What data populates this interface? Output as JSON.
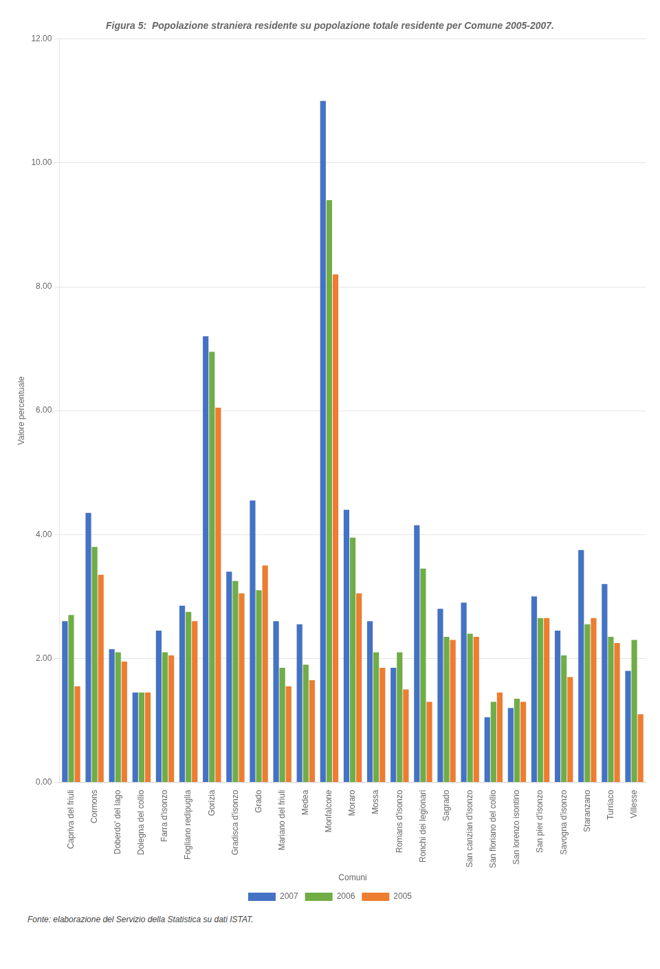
{
  "chart_data": {
    "type": "bar",
    "title": "Figura 5:  Popolazione straniera residente su popolazione totale residente per Comune 2005-2007.",
    "x_label": "Comuni",
    "y_label": "Valore percentuale",
    "categories": [
      "Capriva del friuli",
      "Cormons",
      "Doberdo' del lago",
      "Dolegna del collio",
      "Farra d'isonzo",
      "Fogliano redipuglia",
      "Gorizia",
      "Gradisca d'isonzo",
      "Grado",
      "Mariano del friuli",
      "Medea",
      "Monfalcone",
      "Moraro",
      "Mossa",
      "Romans d'isonzo",
      "Ronchi dei legionari",
      "Sagrado",
      "San canzian d'isonzo",
      "San floriano del collio",
      "San lorenzo isontino",
      "San pier d'isonzo",
      "Savogna d'isonzo",
      "Staranzano",
      "Turriaco",
      "Villesse"
    ],
    "series": [
      {
        "name": "2007",
        "color": "#4472C4",
        "values": [
          2.6,
          4.35,
          2.15,
          1.45,
          2.45,
          2.85,
          7.2,
          3.4,
          4.55,
          2.6,
          2.55,
          11.0,
          4.4,
          2.6,
          1.85,
          4.15,
          2.8,
          2.9,
          1.05,
          1.2,
          3.0,
          2.45,
          3.75,
          3.2,
          1.8
        ]
      },
      {
        "name": "2006",
        "color": "#70AD47",
        "values": [
          2.7,
          3.8,
          2.1,
          1.45,
          2.1,
          2.75,
          6.95,
          3.25,
          3.1,
          1.85,
          1.9,
          9.4,
          3.95,
          2.1,
          2.1,
          3.45,
          2.35,
          2.4,
          1.3,
          1.35,
          2.65,
          2.05,
          2.55,
          2.35,
          2.3
        ]
      },
      {
        "name": "2005",
        "color": "#ED7D31",
        "values": [
          1.55,
          3.35,
          1.95,
          1.45,
          2.05,
          2.6,
          6.05,
          3.05,
          3.5,
          1.55,
          1.65,
          8.2,
          3.05,
          1.85,
          1.5,
          1.3,
          2.3,
          2.35,
          1.45,
          1.3,
          2.65,
          1.7,
          2.65,
          2.25,
          1.1
        ]
      }
    ],
    "ylim": [
      0,
      12
    ],
    "yticks": [
      {
        "value": 0,
        "label": "0.00"
      },
      {
        "value": 2,
        "label": "2.00"
      },
      {
        "value": 4,
        "label": "4.00"
      },
      {
        "value": 6,
        "label": "6.00"
      },
      {
        "value": 8,
        "label": "8.00"
      },
      {
        "value": 10,
        "label": "10.00"
      },
      {
        "value": 12,
        "label": "12.00"
      }
    ],
    "grid": true,
    "legend": "bottom",
    "annotations": [
      "Fonte: elaborazione del Servizio della Statistica su dati ISTAT."
    ]
  }
}
